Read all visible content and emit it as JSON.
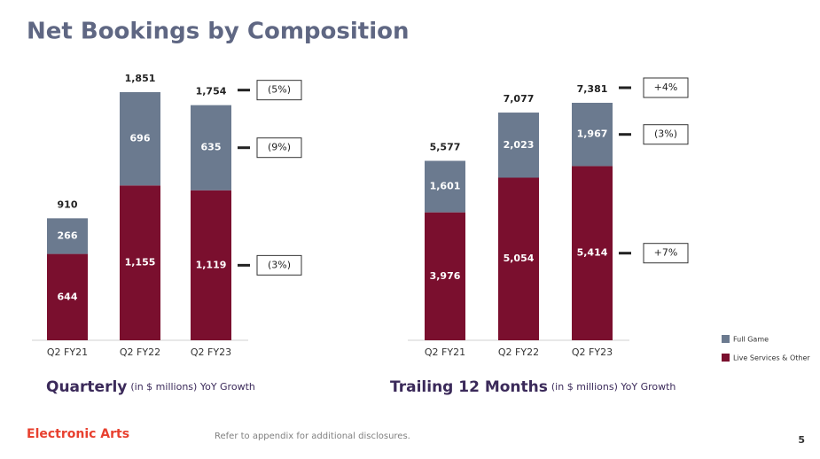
{
  "header": {
    "title": "Net Bookings by Composition"
  },
  "footer": {
    "brand": "Electronic Arts",
    "note": "Refer to appendix for additional disclosures.",
    "page": "5"
  },
  "chart_data": [
    {
      "type": "stacked-bar",
      "title": "Quarterly",
      "subtitle": "(in $ millions) YoY Growth",
      "categories": [
        "Q2 FY21",
        "Q2 FY22",
        "Q2 FY23"
      ],
      "series": [
        {
          "name": "Live Services & Other",
          "color": "#7a0f2e",
          "values": [
            644,
            1155,
            1119
          ],
          "value_labels": [
            "644",
            "1,155",
            "1,119"
          ]
        },
        {
          "name": "Full Game",
          "color": "#6b7a8f",
          "values": [
            266,
            696,
            635
          ],
          "value_labels": [
            "266",
            "696",
            "635"
          ]
        }
      ],
      "totals": [
        910,
        1851,
        1754
      ],
      "total_labels": [
        "910",
        "1,851",
        "1,754"
      ],
      "yoy_growth": [
        "(5%)",
        "(9%)",
        "(3%)"
      ]
    },
    {
      "type": "stacked-bar",
      "title": "Trailing 12 Months",
      "subtitle": "(in $ millions) YoY Growth",
      "categories": [
        "Q2 FY21",
        "Q2 FY22",
        "Q2 FY23"
      ],
      "series": [
        {
          "name": "Live Services & Other",
          "color": "#7a0f2e",
          "values": [
            3976,
            5054,
            5414
          ],
          "value_labels": [
            "3,976",
            "5,054",
            "5,414"
          ]
        },
        {
          "name": "Full Game",
          "color": "#6b7a8f",
          "values": [
            1601,
            2023,
            1967
          ],
          "value_labels": [
            "1,601",
            "2,023",
            "1,967"
          ]
        }
      ],
      "totals": [
        5577,
        7077,
        7381
      ],
      "total_labels": [
        "5,577",
        "7,077",
        "7,381"
      ],
      "yoy_growth": [
        "+4%",
        "(3%)",
        "+7%"
      ]
    }
  ]
}
